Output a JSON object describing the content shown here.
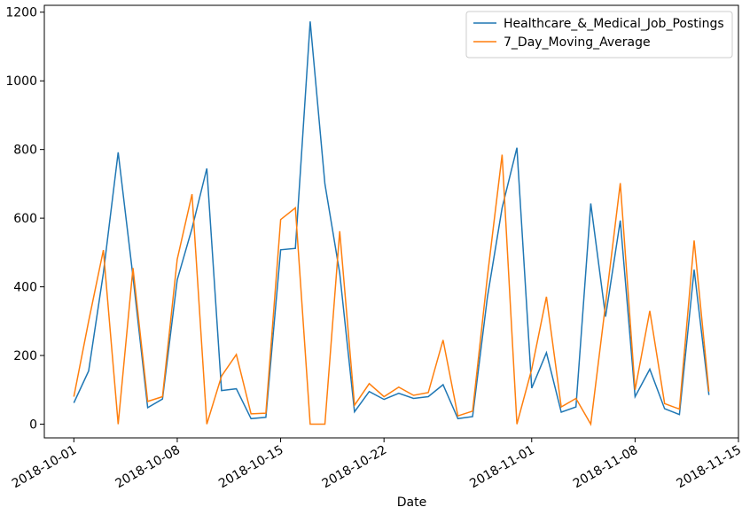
{
  "chart_data": {
    "type": "line",
    "xlabel": "Date",
    "ylabel": "",
    "ylim": [
      -40,
      1220
    ],
    "xlim": [
      "2018-09-29",
      "2018-11-15"
    ],
    "x_ticks": [
      "2018-10-01",
      "2018-10-08",
      "2018-10-15",
      "2018-10-22",
      "2018-11-01",
      "2018-11-08",
      "2018-11-15"
    ],
    "y_ticks": [
      0,
      200,
      400,
      600,
      800,
      1000,
      1200
    ],
    "grid": false,
    "legend_position": "upper right",
    "x": [
      "2018-10-01",
      "2018-10-02",
      "2018-10-03",
      "2018-10-04",
      "2018-10-05",
      "2018-10-06",
      "2018-10-07",
      "2018-10-08",
      "2018-10-09",
      "2018-10-10",
      "2018-10-11",
      "2018-10-12",
      "2018-10-13",
      "2018-10-14",
      "2018-10-15",
      "2018-10-16",
      "2018-10-17",
      "2018-10-18",
      "2018-10-19",
      "2018-10-20",
      "2018-10-21",
      "2018-10-22",
      "2018-10-23",
      "2018-10-24",
      "2018-10-25",
      "2018-10-26",
      "2018-10-27",
      "2018-10-28",
      "2018-10-29",
      "2018-10-30",
      "2018-10-31",
      "2018-11-01",
      "2018-11-02",
      "2018-11-03",
      "2018-11-04",
      "2018-11-05",
      "2018-11-06",
      "2018-11-07",
      "2018-11-08",
      "2018-11-09",
      "2018-11-10",
      "2018-11-11",
      "2018-11-12",
      "2018-11-13"
    ],
    "series": [
      {
        "name": "Healthcare_&_Medical_Job_Postings",
        "color": "#1f77b4",
        "values": [
          62,
          155,
          440,
          792,
          430,
          48,
          73,
          420,
          570,
          745,
          98,
          103,
          16,
          20,
          508,
          512,
          1173,
          700,
          440,
          36,
          95,
          72,
          90,
          75,
          80,
          115,
          16,
          22,
          370,
          630,
          805,
          105,
          208,
          35,
          50,
          643,
          313,
          593,
          80,
          160,
          45,
          28,
          450,
          85
        ]
      },
      {
        "name": "7_Day_Moving_Average",
        "color": "#ff7f0e",
        "values": [
          80,
          300,
          507,
          0,
          455,
          66,
          80,
          480,
          670,
          0,
          140,
          203,
          30,
          32,
          596,
          630,
          0,
          0,
          562,
          55,
          118,
          80,
          108,
          84,
          92,
          245,
          24,
          38,
          430,
          785,
          0,
          160,
          371,
          50,
          75,
          0,
          350,
          702,
          100,
          330,
          60,
          44,
          535,
          95
        ]
      }
    ]
  }
}
